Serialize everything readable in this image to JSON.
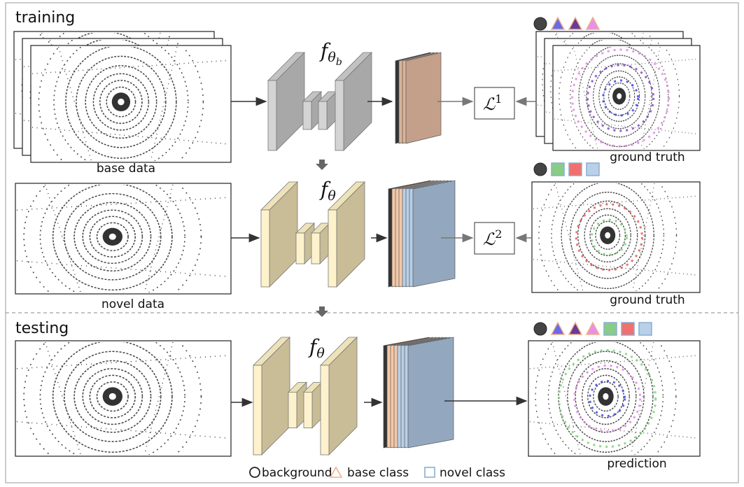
{
  "sections": {
    "training": "training",
    "testing": "testing"
  },
  "labels": {
    "base_data": "base data",
    "ground_truth_1": "ground truth",
    "novel_data": "novel data",
    "ground_truth_2": "ground truth",
    "prediction": "prediction"
  },
  "networks": [
    {
      "symbol": "f",
      "subscript": "θ",
      "sub_subscript": "b"
    },
    {
      "symbol": "f",
      "subscript": "θ"
    },
    {
      "symbol": "f",
      "subscript": "θ"
    }
  ],
  "losses": [
    {
      "symbol": "ℒ",
      "superscript": "1"
    },
    {
      "symbol": "ℒ",
      "superscript": "2"
    }
  ],
  "legend": [
    "background",
    "base class",
    "novel class"
  ]
}
